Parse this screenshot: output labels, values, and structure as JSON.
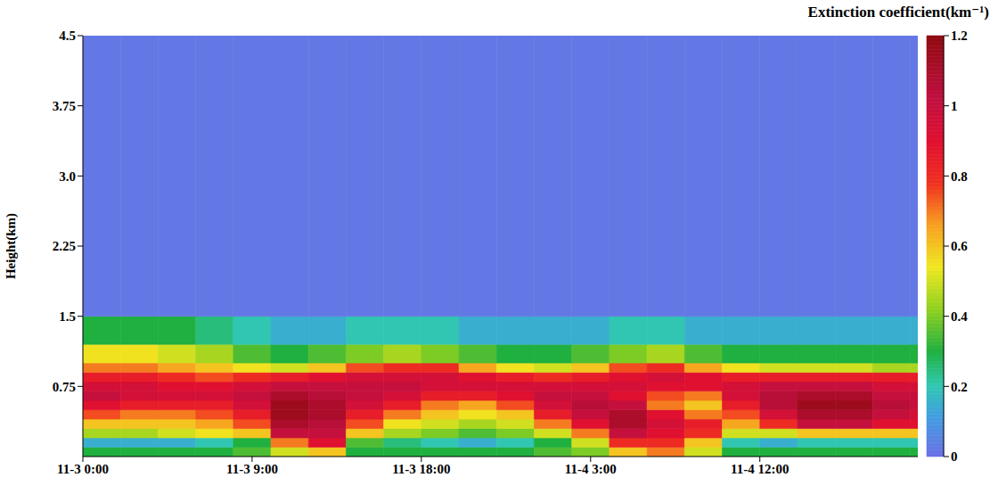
{
  "chart_data": {
    "type": "heatmap",
    "y_label": "Height(km)",
    "colorbar_label": "Extinction coefficient(km⁻¹)",
    "xlim": [
      0,
      44.4
    ],
    "xticks": [
      {
        "value": 0,
        "label": "11-3 0:00"
      },
      {
        "value": 9,
        "label": "11-3 9:00"
      },
      {
        "value": 18,
        "label": "11-3 18:00"
      },
      {
        "value": 27,
        "label": "11-4 3:00"
      },
      {
        "value": 36,
        "label": "11-4 12:00"
      }
    ],
    "ylim": [
      0,
      4.5
    ],
    "yticks": [
      0.75,
      1.5,
      2.25,
      {
        "value": 3,
        "label": "3.0"
      },
      3.75,
      4.5
    ],
    "x_edges": [
      0,
      2,
      4,
      6,
      8,
      10,
      12,
      14,
      16,
      18,
      20,
      22,
      24,
      26,
      28,
      30,
      32,
      34,
      36,
      38,
      40,
      42,
      44,
      44.4
    ],
    "y_edges": [
      0,
      0.1,
      0.2,
      0.3,
      0.4,
      0.5,
      0.6,
      0.7,
      0.8,
      0.9,
      1.0,
      1.2,
      1.5,
      4.5
    ],
    "values": [
      [
        0.3,
        0.3,
        0.3,
        0.3,
        0.35,
        0.5,
        0.6,
        0.3,
        0.3,
        0.3,
        0.3,
        0.3,
        0.35,
        0.4,
        0.6,
        0.7,
        0.5,
        0.3,
        0.3,
        0.3,
        0.3,
        0.3,
        0.3
      ],
      [
        0.15,
        0.15,
        0.15,
        0.2,
        0.3,
        0.7,
        0.9,
        0.35,
        0.25,
        0.2,
        0.15,
        0.2,
        0.3,
        0.5,
        0.8,
        0.8,
        0.6,
        0.2,
        0.15,
        0.2,
        0.2,
        0.2,
        0.2
      ],
      [
        0.45,
        0.45,
        0.5,
        0.55,
        0.6,
        1.0,
        1.0,
        0.6,
        0.45,
        0.4,
        0.35,
        0.4,
        0.5,
        0.7,
        1.0,
        0.9,
        0.8,
        0.5,
        0.5,
        0.6,
        0.6,
        0.6,
        0.6
      ],
      [
        0.6,
        0.6,
        0.6,
        0.65,
        0.75,
        1.1,
        1.05,
        0.75,
        0.55,
        0.5,
        0.45,
        0.5,
        0.7,
        0.9,
        1.1,
        0.95,
        0.85,
        0.65,
        0.8,
        1.0,
        1.0,
        0.9,
        0.9
      ],
      [
        0.75,
        0.7,
        0.7,
        0.75,
        0.85,
        1.15,
        1.1,
        0.85,
        0.7,
        0.6,
        0.55,
        0.6,
        0.85,
        1.0,
        1.1,
        0.9,
        0.7,
        0.75,
        0.95,
        1.1,
        1.1,
        1.0,
        0.95
      ],
      [
        0.9,
        0.85,
        0.85,
        0.85,
        0.95,
        1.15,
        1.1,
        0.95,
        0.85,
        0.7,
        0.65,
        0.75,
        0.95,
        1.05,
        1.0,
        0.7,
        0.6,
        0.85,
        1.05,
        1.15,
        1.15,
        1.05,
        1.0
      ],
      [
        1.0,
        0.95,
        0.95,
        0.95,
        1.0,
        1.1,
        1.05,
        1.0,
        0.95,
        0.85,
        0.85,
        0.9,
        1.0,
        1.0,
        0.9,
        0.75,
        0.7,
        0.95,
        1.05,
        1.1,
        1.1,
        1.0,
        1.0
      ],
      [
        0.95,
        0.95,
        0.9,
        0.9,
        0.95,
        1.0,
        1.0,
        1.0,
        1.0,
        0.95,
        0.95,
        0.95,
        0.95,
        0.95,
        0.95,
        0.9,
        0.9,
        0.95,
        1.0,
        1.0,
        1.0,
        0.95,
        0.95
      ],
      [
        0.85,
        0.85,
        0.8,
        0.75,
        0.8,
        0.85,
        0.9,
        0.95,
        0.95,
        0.95,
        0.9,
        0.85,
        0.8,
        0.85,
        0.9,
        0.95,
        0.9,
        0.85,
        0.85,
        0.85,
        0.85,
        0.85,
        0.85
      ],
      [
        0.7,
        0.7,
        0.65,
        0.6,
        0.55,
        0.5,
        0.6,
        0.75,
        0.8,
        0.8,
        0.65,
        0.55,
        0.5,
        0.6,
        0.75,
        0.8,
        0.65,
        0.55,
        0.5,
        0.5,
        0.5,
        0.45,
        0.45
      ],
      [
        0.55,
        0.55,
        0.5,
        0.45,
        0.35,
        0.3,
        0.35,
        0.4,
        0.45,
        0.4,
        0.35,
        0.3,
        0.3,
        0.35,
        0.4,
        0.45,
        0.35,
        0.3,
        0.3,
        0.3,
        0.3,
        0.3,
        0.3
      ],
      [
        0.3,
        0.3,
        0.3,
        0.25,
        0.2,
        0.15,
        0.15,
        0.2,
        0.2,
        0.2,
        0.15,
        0.15,
        0.15,
        0.15,
        0.2,
        0.2,
        0.15,
        0.15,
        0.15,
        0.15,
        0.15,
        0.15,
        0.15
      ],
      [
        0.02,
        0.02,
        0.02,
        0.02,
        0.02,
        0.02,
        0.02,
        0.02,
        0.02,
        0.02,
        0.02,
        0.02,
        0.02,
        0.02,
        0.02,
        0.02,
        0.02,
        0.02,
        0.02,
        0.02,
        0.02,
        0.02,
        0.02
      ]
    ],
    "colorbar_range": [
      0,
      1.2
    ],
    "colorbar_ticks": [
      0,
      0.2,
      0.4,
      0.6,
      0.8,
      1,
      1.2
    ]
  }
}
